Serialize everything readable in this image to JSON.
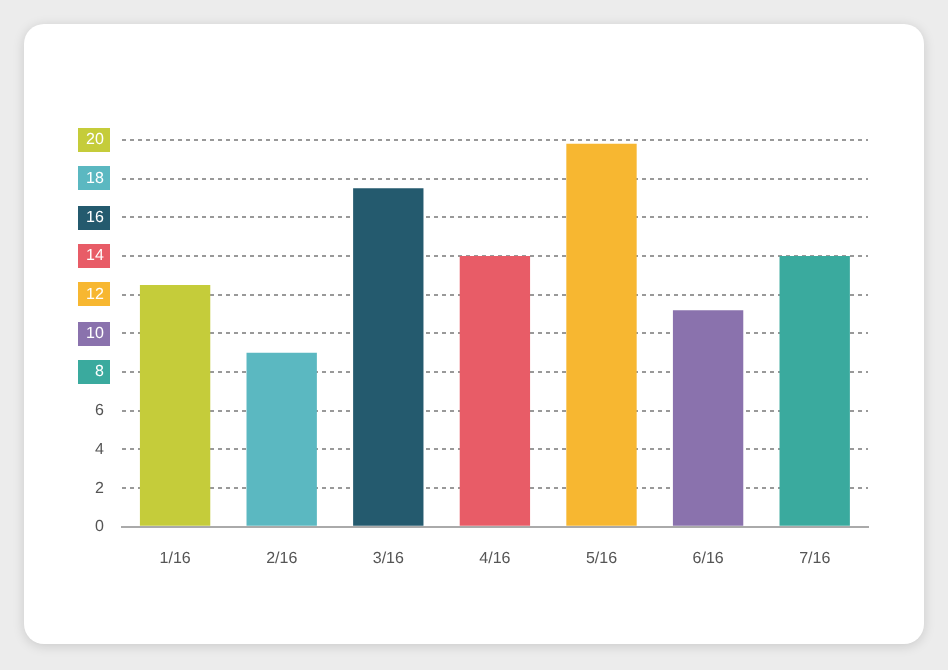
{
  "chart_data": {
    "type": "bar",
    "categories": [
      "1/16",
      "2/16",
      "3/16",
      "4/16",
      "5/16",
      "6/16",
      "7/16"
    ],
    "values": [
      12.5,
      9,
      17.5,
      14,
      19.8,
      11.2,
      14
    ],
    "colors": [
      "#c5cc3a",
      "#5bb8c1",
      "#245a6e",
      "#e85c67",
      "#f7b731",
      "#8a72ad",
      "#3aaa9e"
    ],
    "ylim": [
      0,
      20
    ],
    "yticks": [
      0,
      2,
      4,
      6,
      8,
      10,
      12,
      14,
      16,
      18,
      20
    ],
    "grid": "y"
  }
}
